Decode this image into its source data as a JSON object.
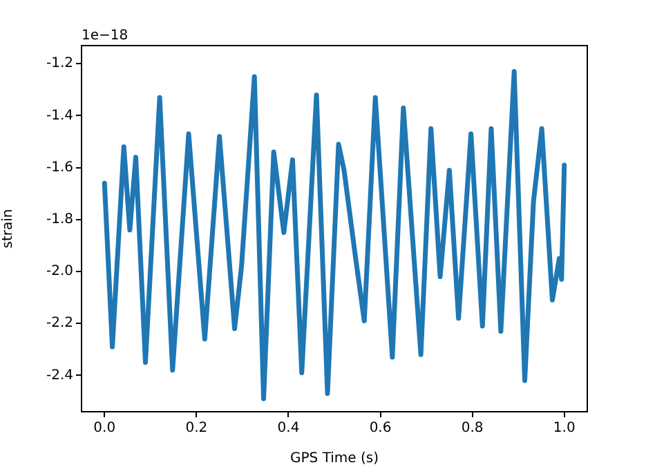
{
  "chart_data": {
    "type": "line",
    "xlabel": "GPS Time (s)",
    "ylabel": "strain",
    "annotations": [
      "1e−18"
    ],
    "xlim": [
      -0.05,
      1.05
    ],
    "xticks": [
      {
        "value": 0,
        "label": "0.0"
      },
      0.2,
      0.4,
      0.6,
      0.8,
      {
        "value": 1,
        "label": "1.0"
      }
    ],
    "ylim": [
      -2.54,
      -1.13
    ],
    "yticks": [
      -2.4,
      -2.2,
      {
        "value": -2,
        "label": "-2.0"
      },
      -1.8,
      -1.6,
      -1.4,
      -1.2
    ],
    "grid": false,
    "legend": false,
    "marker": "none",
    "line_style": "solid",
    "series": [
      {
        "color": "#1f77b4",
        "x": [
          0,
          0.017,
          0.042,
          0.055,
          0.068,
          0.089,
          0.12,
          0.148,
          0.183,
          0.218,
          0.25,
          0.283,
          0.298,
          0.326,
          0.346,
          0.368,
          0.39,
          0.409,
          0.429,
          0.461,
          0.485,
          0.509,
          0.521,
          0.547,
          0.565,
          0.589,
          0.626,
          0.65,
          0.688,
          0.71,
          0.73,
          0.75,
          0.77,
          0.797,
          0.822,
          0.841,
          0.862,
          0.891,
          0.914,
          0.933,
          0.951,
          0.974,
          0.989,
          0.994,
          1.0
        ],
        "values": [
          -1.66,
          -2.29,
          -1.52,
          -1.84,
          -1.56,
          -2.35,
          -1.33,
          -2.38,
          -1.47,
          -2.26,
          -1.48,
          -2.22,
          -1.98,
          -1.25,
          -2.49,
          -1.54,
          -1.85,
          -1.57,
          -2.39,
          -1.32,
          -2.47,
          -1.51,
          -1.61,
          -1.96,
          -2.19,
          -1.33,
          -2.33,
          -1.37,
          -2.32,
          -1.45,
          -2.02,
          -1.61,
          -2.18,
          -1.47,
          -2.21,
          -1.45,
          -2.23,
          -1.23,
          -2.42,
          -1.73,
          -1.45,
          -2.11,
          -1.95,
          -2.03,
          -1.59
        ]
      }
    ]
  }
}
